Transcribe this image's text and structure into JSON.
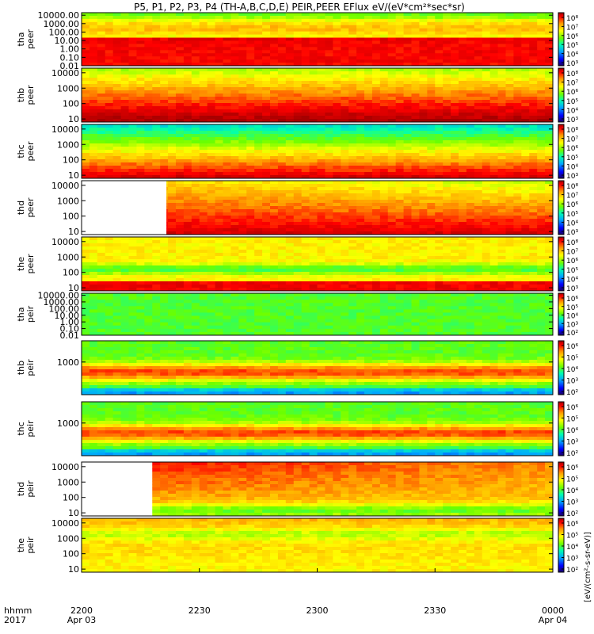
{
  "chart_data": {
    "type": "heatmap",
    "title": "P5, P1, P2, P3, P4 (TH-A,B,C,D,E) PEIR,PEER EFlux eV/(eV*cm²*sec*sr)",
    "xlabel": "",
    "x_label_row1": "hhmm",
    "x_label_row2": "2017",
    "x_range": [
      "2017-04-03 22:00",
      "2017-04-04 00:00"
    ],
    "x_ticks": [
      {
        "hhmm": "2200",
        "date": "Apr 03"
      },
      {
        "hhmm": "2230",
        "date": ""
      },
      {
        "hhmm": "2300",
        "date": ""
      },
      {
        "hhmm": "2330",
        "date": ""
      },
      {
        "hhmm": "0000",
        "date": "Apr 04"
      }
    ],
    "colorbar_unit": "[eV/(cm²-s-sr-eV)]",
    "colormap": [
      "#1a0060",
      "#0000ff",
      "#00a8ff",
      "#00ffb0",
      "#6aff00",
      "#ffff00",
      "#ff9600",
      "#ff0000",
      "#a00000"
    ],
    "panels": [
      {
        "line1": "tha",
        "line2": "peer",
        "yticks": [
          "10000.00",
          "1000.00",
          "100.00",
          "10.00",
          "1.00",
          "0.10",
          "0.01"
        ],
        "log_min": -2,
        "log_max": 4.3,
        "cbar": [
          "10⁸",
          "10⁷",
          "10⁶",
          "10⁵",
          "10⁴",
          "10³"
        ],
        "data_start": 0
      },
      {
        "line1": "thb",
        "line2": "peer",
        "yticks": [
          "10000",
          "1000",
          "100",
          "10"
        ],
        "log_min": 0.8,
        "log_max": 4.3,
        "cbar": [
          "10⁸",
          "10⁷",
          "10⁶",
          "10⁵",
          "10⁴",
          "10³"
        ],
        "data_start": 0
      },
      {
        "line1": "thc",
        "line2": "peer",
        "yticks": [
          "10000",
          "1000",
          "100",
          "10"
        ],
        "log_min": 0.8,
        "log_max": 4.3,
        "cbar": [
          "10⁸",
          "10⁷",
          "10⁶",
          "10⁵",
          "10⁴",
          "10³"
        ],
        "data_start": 0
      },
      {
        "line1": "thd",
        "line2": "peer",
        "yticks": [
          "10000",
          "1000",
          "100",
          "10"
        ],
        "log_min": 0.8,
        "log_max": 4.3,
        "cbar": [
          "10⁸",
          "10⁷",
          "10⁶",
          "10⁵",
          "10⁴",
          "10³"
        ],
        "data_start": 0.18
      },
      {
        "line1": "the",
        "line2": "peer",
        "yticks": [
          "10000",
          "1000",
          "100",
          "10"
        ],
        "log_min": 0.8,
        "log_max": 4.3,
        "cbar": [
          "10⁸",
          "10⁷",
          "10⁶",
          "10⁵",
          "10⁴",
          "10³"
        ],
        "data_start": 0
      },
      {
        "line1": "tha",
        "line2": "peir",
        "yticks": [
          "10000.00",
          "1000.00",
          "100.00",
          "10.00",
          "1.00",
          "0.10",
          "0.01"
        ],
        "log_min": -2,
        "log_max": 4.3,
        "cbar": [
          "10⁶",
          "10⁵",
          "10⁴",
          "10³",
          "10²"
        ],
        "data_start": 0
      },
      {
        "line1": "thb",
        "line2": "peir",
        "yticks": [
          "1000"
        ],
        "log_min": 1,
        "log_max": 4.3,
        "cbar": [
          "10⁶",
          "10⁵",
          "10⁴",
          "10³",
          "10²"
        ],
        "data_start": 0
      },
      {
        "line1": "thc",
        "line2": "peir",
        "yticks": [
          "1000"
        ],
        "log_min": 1,
        "log_max": 4.3,
        "cbar": [
          "10⁶",
          "10⁵",
          "10⁴",
          "10³",
          "10²"
        ],
        "data_start": 0
      },
      {
        "line1": "thd",
        "line2": "peir",
        "yticks": [
          "10000",
          "1000",
          "100",
          "10"
        ],
        "log_min": 0.8,
        "log_max": 4.3,
        "cbar": [
          "10⁶",
          "10⁵",
          "10⁴",
          "10³",
          "10²"
        ],
        "data_start": 0.15
      },
      {
        "line1": "the",
        "line2": "peir",
        "yticks": [
          "10000",
          "1000",
          "100",
          "10"
        ],
        "log_min": 0.8,
        "log_max": 4.3,
        "cbar": [
          "10⁶",
          "10⁵",
          "10⁴",
          "10³",
          "10²"
        ],
        "data_start": 0
      }
    ]
  }
}
